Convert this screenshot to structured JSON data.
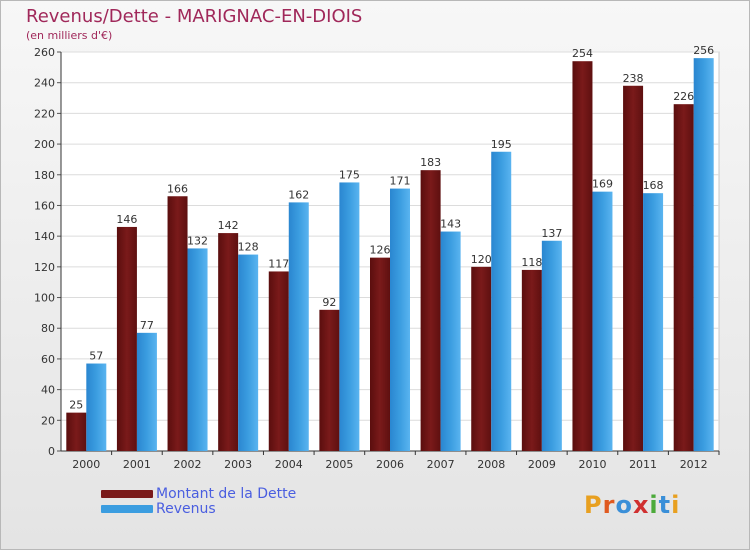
{
  "chart_data": {
    "type": "bar",
    "title": "Revenus/Dette - MARIGNAC-EN-DIOIS",
    "subtitle": "(en milliers d'€)",
    "categories": [
      "2000",
      "2001",
      "2002",
      "2003",
      "2004",
      "2005",
      "2006",
      "2007",
      "2008",
      "2009",
      "2010",
      "2011",
      "2012"
    ],
    "series": [
      {
        "name": "Montant de la Dette",
        "color": "#7a1a1a",
        "values": [
          25,
          146,
          166,
          142,
          117,
          92,
          126,
          183,
          120,
          118,
          254,
          238,
          226
        ]
      },
      {
        "name": "Revenus",
        "color": "#3b9de0",
        "values": [
          57,
          77,
          132,
          128,
          162,
          175,
          171,
          143,
          195,
          137,
          169,
          168,
          256
        ]
      }
    ],
    "ylim": [
      0,
      260
    ],
    "yticks": [
      0,
      20,
      40,
      60,
      80,
      100,
      120,
      140,
      160,
      180,
      200,
      220,
      240,
      260
    ],
    "grid": true,
    "legend_position": "bottom-left"
  },
  "logo": {
    "text": "Proxiti",
    "letters": [
      {
        "ch": "P",
        "color": "#e8a020"
      },
      {
        "ch": "r",
        "color": "#e05a20"
      },
      {
        "ch": "o",
        "color": "#3a8fd8"
      },
      {
        "ch": "x",
        "color": "#d03030"
      },
      {
        "ch": "i",
        "color": "#4caa3a"
      },
      {
        "ch": "t",
        "color": "#3a8fd8"
      },
      {
        "ch": "i",
        "color": "#e8a020"
      }
    ]
  }
}
